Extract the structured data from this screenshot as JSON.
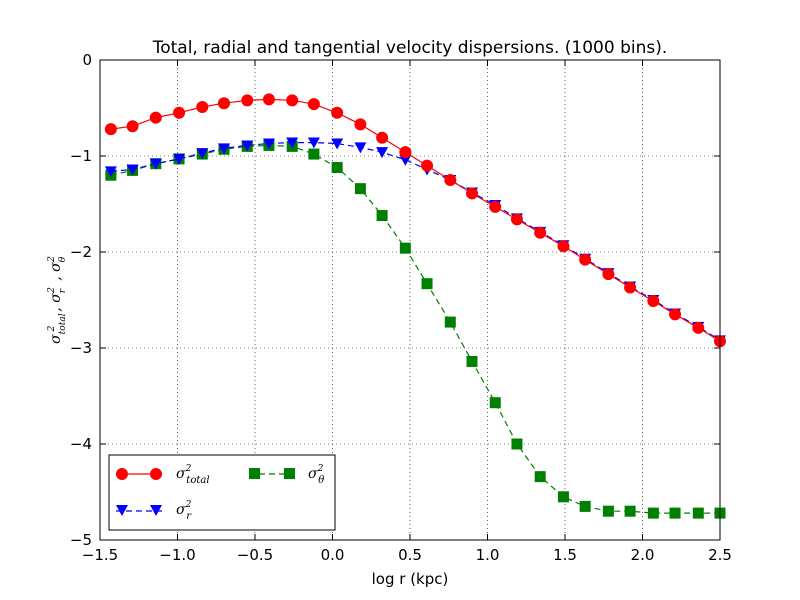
{
  "chart_data": {
    "type": "line",
    "title": "Total, radial and tangential velocity dispersions. (1000 bins).",
    "xlabel": "log r (kpc)",
    "ylabel": "σ²total, σ²r , σ²θ",
    "xlim": [
      -1.5,
      2.5
    ],
    "ylim": [
      -5,
      0
    ],
    "xticks": [
      -1.5,
      -1.0,
      -0.5,
      0.0,
      0.5,
      1.0,
      1.5,
      2.0,
      2.5
    ],
    "xtick_labels": [
      "−1.5",
      "−1.0",
      "−0.5",
      "0.0",
      "0.5",
      "1.0",
      "1.5",
      "2.0",
      "2.5"
    ],
    "yticks": [
      0,
      -1,
      -2,
      -3,
      -4,
      -5
    ],
    "ytick_labels": [
      "0",
      "−1",
      "−2",
      "−3",
      "−4",
      "−5"
    ],
    "grid": true,
    "legend_position": "lower-left",
    "x": [
      -1.43,
      -1.29,
      -1.14,
      -0.99,
      -0.84,
      -0.7,
      -0.55,
      -0.41,
      -0.26,
      -0.12,
      0.03,
      0.18,
      0.32,
      0.47,
      0.61,
      0.76,
      0.9,
      1.05,
      1.19,
      1.34,
      1.49,
      1.63,
      1.78,
      1.92,
      2.07,
      2.21,
      2.36,
      2.5
    ],
    "series": [
      {
        "name": "σ²total",
        "color": "#ff0000",
        "marker": "circle",
        "linestyle": "solid",
        "values": [
          -0.72,
          -0.69,
          -0.6,
          -0.55,
          -0.49,
          -0.45,
          -0.42,
          -0.41,
          -0.42,
          -0.46,
          -0.55,
          -0.67,
          -0.81,
          -0.96,
          -1.1,
          -1.25,
          -1.39,
          -1.53,
          -1.66,
          -1.8,
          -1.94,
          -2.08,
          -2.23,
          -2.37,
          -2.51,
          -2.65,
          -2.79,
          -2.93
        ]
      },
      {
        "name": "σ²r",
        "color": "#0000ff",
        "marker": "triangle-down",
        "linestyle": "dashed",
        "values": [
          -1.16,
          -1.14,
          -1.08,
          -1.03,
          -0.97,
          -0.92,
          -0.89,
          -0.87,
          -0.86,
          -0.86,
          -0.87,
          -0.91,
          -0.96,
          -1.04,
          -1.14,
          -1.25,
          -1.38,
          -1.51,
          -1.65,
          -1.79,
          -1.93,
          -2.07,
          -2.22,
          -2.36,
          -2.5,
          -2.64,
          -2.78,
          -2.92
        ]
      },
      {
        "name": "σ²θ",
        "color": "#008000",
        "marker": "square",
        "linestyle": "dashed",
        "values": [
          -1.2,
          -1.15,
          -1.08,
          -1.03,
          -0.98,
          -0.93,
          -0.9,
          -0.89,
          -0.9,
          -0.98,
          -1.12,
          -1.34,
          -1.62,
          -1.96,
          -2.33,
          -2.73,
          -3.14,
          -3.57,
          -4.0,
          -4.34,
          -4.55,
          -4.65,
          -4.7,
          -4.7,
          -4.72,
          -4.72,
          -4.72,
          -4.72
        ]
      }
    ]
  }
}
